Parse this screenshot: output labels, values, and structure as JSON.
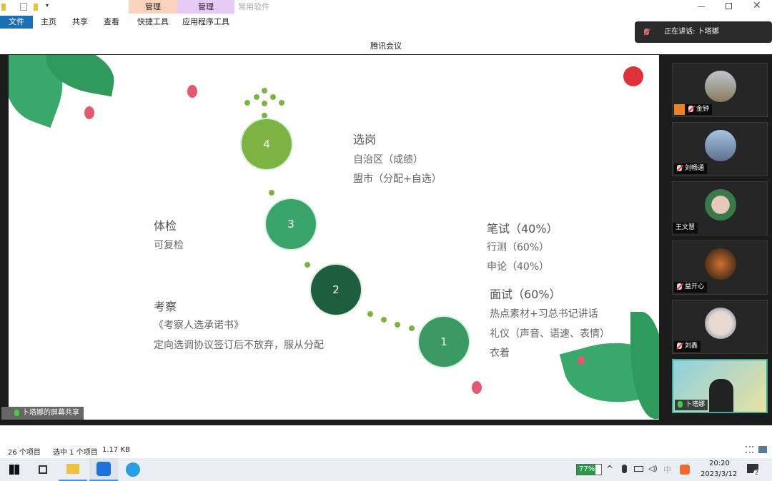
{
  "explorer": {
    "ribbon_tabs": [
      "文件",
      "主页",
      "共享",
      "查看",
      "快捷工具",
      "应用程序工具"
    ],
    "context_groups": [
      "管理",
      "管理"
    ],
    "context_title": "常用软件",
    "status": {
      "count": "26 个项目",
      "selected": "选中 1 个项目",
      "size": "1.17 KB"
    }
  },
  "meeting": {
    "title": "腾讯会议",
    "speaking": "正在讲话: 卜塔娜",
    "share_label": "卜塔娜的屏幕共享",
    "participants": [
      {
        "name": "金钟",
        "muted": true
      },
      {
        "name": "刘畅通",
        "muted": true
      },
      {
        "name": "王文慧",
        "muted": false
      },
      {
        "name": "益开心",
        "muted": true
      },
      {
        "name": "刘鑫",
        "muted": true
      },
      {
        "name": "卜塔娜",
        "muted": false
      }
    ]
  },
  "slide": {
    "steps": [
      "4",
      "3",
      "2",
      "1"
    ],
    "s4": {
      "title": "选岗",
      "lines": [
        "自治区（成绩）",
        "盟市（分配+自选）"
      ]
    },
    "s3": {
      "title": "体检",
      "lines": [
        "可复检"
      ]
    },
    "s2": {
      "title": "考察",
      "lines": [
        "《考察人选承诺书》",
        "定向选调协议签订后不放弃，服从分配"
      ]
    },
    "s1a": {
      "title": "笔试（40%）",
      "lines": [
        "行测（60%）",
        "申论（40%）"
      ]
    },
    "s1b": {
      "title": "面试（60%）",
      "lines": [
        "热点素材+习总书记讲话",
        "礼仪（声音、语速、表情）",
        "衣着"
      ]
    }
  },
  "taskbar": {
    "battery": "77%",
    "time": "20:20",
    "date": "2023/3/12",
    "notifications": "2"
  },
  "colors": {
    "accent": "#0063b1",
    "green1": "#7cb342",
    "green2": "#3aa36a",
    "green3": "#1e5e3e"
  }
}
